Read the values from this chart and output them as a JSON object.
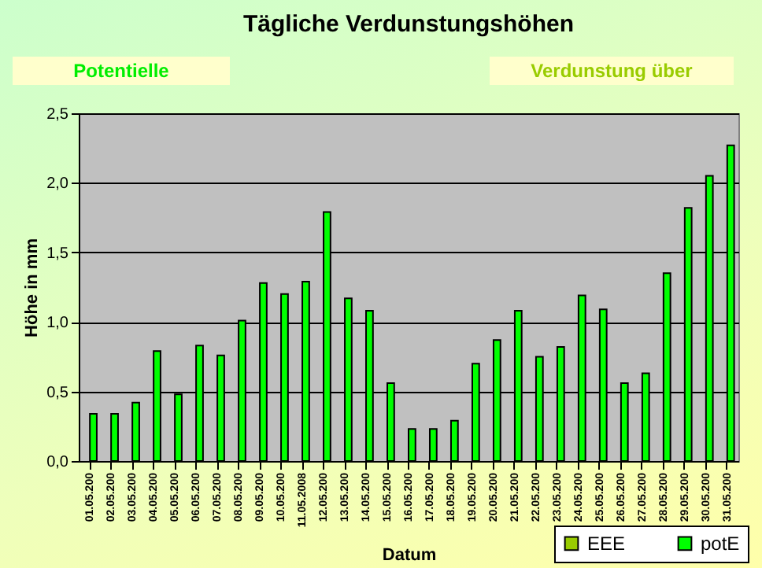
{
  "chart_data": {
    "type": "bar",
    "title": "Tägliche Verdunstungshöhen",
    "xlabel": "Datum",
    "ylabel": "Höhe in mm",
    "annotations": [
      "Potentielle",
      "Verdunstung über"
    ],
    "categories": [
      "01.05.200",
      "02.05.200",
      "03.05.200",
      "04.05.200",
      "05.05.200",
      "06.05.200",
      "07.05.200",
      "08.05.200",
      "09.05.200",
      "10.05.200",
      "11.05.2008",
      "12.05.200",
      "13.05.200",
      "14.05.200",
      "15.05.200",
      "16.05.200",
      "17.05.200",
      "18.05.200",
      "19.05.200",
      "20.05.200",
      "21.05.200",
      "22.05.200",
      "23.05.200",
      "24.05.200",
      "25.05.200",
      "26.05.200",
      "27.05.200",
      "28.05.200",
      "29.05.200",
      "30.05.200",
      "31.05.200"
    ],
    "series": [
      {
        "name": "EEE",
        "color": "#99cc00",
        "values": [
          null,
          null,
          null,
          null,
          null,
          null,
          null,
          null,
          null,
          null,
          null,
          null,
          null,
          null,
          null,
          null,
          null,
          null,
          null,
          null,
          null,
          null,
          null,
          null,
          null,
          null,
          null,
          null,
          null,
          null,
          null
        ]
      },
      {
        "name": "potE",
        "color": "#00ff00",
        "values": [
          0.34,
          0.34,
          0.42,
          0.79,
          0.48,
          0.83,
          0.76,
          1.01,
          1.28,
          1.2,
          1.29,
          1.79,
          1.17,
          1.08,
          0.56,
          0.23,
          0.23,
          0.29,
          0.7,
          0.87,
          1.08,
          0.75,
          0.82,
          1.19,
          1.09,
          0.56,
          0.63,
          1.35,
          1.82,
          2.05,
          2.27
        ]
      }
    ],
    "ylim": [
      0,
      2.5
    ],
    "yticks": [
      {
        "value": 0,
        "label": "0,0"
      },
      {
        "value": 0.5,
        "label": "0,5"
      },
      {
        "value": 1,
        "label": "1,0"
      },
      {
        "value": 1.5,
        "label": "1,5"
      },
      {
        "value": 2,
        "label": "2,0"
      },
      {
        "value": 2.5,
        "label": "2,5"
      }
    ],
    "grid": "y",
    "legend": "bottom right"
  }
}
